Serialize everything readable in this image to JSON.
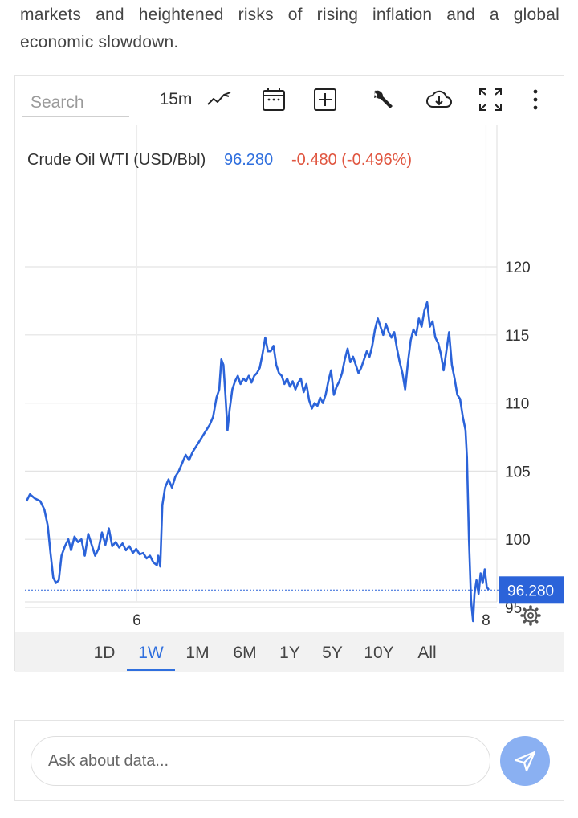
{
  "intro": {
    "line1": "markets and heightened risks of rising inflation and a global",
    "line2": "economic slowdown."
  },
  "toolbar": {
    "search_placeholder": "Search",
    "interval": "15m",
    "icons": [
      "line-chart-icon",
      "calendar-icon",
      "add-box-icon",
      "wrench-icon",
      "cloud-download-icon",
      "fullscreen-icon",
      "more-vert-icon"
    ]
  },
  "chart_data": {
    "type": "line",
    "title": "Crude Oil WTI (USD/Bbl)",
    "last_value": "96.280",
    "change": "-0.480 (-0.496%)",
    "price_tag": "96.280",
    "series_color": "#2b63d9",
    "up_color": "#2f6fde",
    "down_color": "#e0553f",
    "ylim": [
      90,
      121
    ],
    "y_ticks": [
      95,
      100,
      105,
      110,
      115,
      120
    ],
    "x_ticks": [
      {
        "label": "6",
        "x": 46
      },
      {
        "label": "8",
        "x": 96
      }
    ],
    "xlim": [
      0,
      100
    ],
    "grid": true,
    "reference_line": 96.28,
    "points": [
      [
        0,
        102.8
      ],
      [
        0.5,
        103.3
      ],
      [
        1.2,
        103.0
      ],
      [
        2,
        102.8
      ],
      [
        2.6,
        102.2
      ],
      [
        3.1,
        101.0
      ],
      [
        3.5,
        99.0
      ],
      [
        3.9,
        97.2
      ],
      [
        4.3,
        96.8
      ],
      [
        4.7,
        97.0
      ],
      [
        5.1,
        98.8
      ],
      [
        5.6,
        99.5
      ],
      [
        6.1,
        100.0
      ],
      [
        6.5,
        99.2
      ],
      [
        7,
        100.2
      ],
      [
        7.5,
        99.8
      ],
      [
        8,
        100.0
      ],
      [
        8.5,
        98.8
      ],
      [
        9,
        100.4
      ],
      [
        9.5,
        99.6
      ],
      [
        10,
        98.8
      ],
      [
        10.5,
        99.3
      ],
      [
        11,
        100.5
      ],
      [
        11.5,
        99.6
      ],
      [
        12,
        100.8
      ],
      [
        12.5,
        99.5
      ],
      [
        13,
        99.8
      ],
      [
        13.5,
        99.4
      ],
      [
        14,
        99.7
      ],
      [
        14.5,
        99.2
      ],
      [
        15,
        99.5
      ],
      [
        15.5,
        99.0
      ],
      [
        16,
        99.3
      ],
      [
        16.5,
        98.9
      ],
      [
        17,
        99.0
      ],
      [
        17.5,
        98.6
      ],
      [
        18,
        98.8
      ],
      [
        18.5,
        98.3
      ],
      [
        19,
        98.1
      ],
      [
        19.2,
        98.8
      ],
      [
        19.5,
        98.0
      ],
      [
        19.8,
        102.5
      ],
      [
        20.2,
        103.8
      ],
      [
        20.7,
        104.4
      ],
      [
        21.2,
        103.8
      ],
      [
        21.7,
        104.6
      ],
      [
        22.2,
        105.0
      ],
      [
        22.7,
        105.6
      ],
      [
        23.2,
        106.2
      ],
      [
        23.7,
        105.8
      ],
      [
        24.2,
        106.4
      ],
      [
        24.7,
        106.8
      ],
      [
        25.2,
        107.2
      ],
      [
        25.7,
        107.6
      ],
      [
        26.2,
        108.0
      ],
      [
        26.7,
        108.4
      ],
      [
        27.2,
        109.0
      ],
      [
        27.7,
        110.4
      ],
      [
        28.1,
        111.0
      ],
      [
        28.4,
        113.2
      ],
      [
        28.7,
        112.8
      ],
      [
        29.0,
        110.6
      ],
      [
        29.3,
        108.0
      ],
      [
        29.6,
        109.5
      ],
      [
        30.0,
        111.0
      ],
      [
        30.4,
        111.6
      ],
      [
        30.8,
        112.0
      ],
      [
        31.2,
        111.4
      ],
      [
        31.6,
        111.8
      ],
      [
        32.0,
        111.6
      ],
      [
        32.4,
        112.0
      ],
      [
        32.8,
        111.5
      ],
      [
        33.2,
        112.0
      ],
      [
        33.6,
        112.2
      ],
      [
        34.0,
        112.6
      ],
      [
        34.4,
        113.6
      ],
      [
        34.8,
        114.8
      ],
      [
        35.2,
        113.8
      ],
      [
        35.6,
        113.8
      ],
      [
        36.0,
        114.2
      ],
      [
        36.4,
        112.8
      ],
      [
        36.8,
        112.2
      ],
      [
        37.2,
        112.0
      ],
      [
        37.6,
        111.4
      ],
      [
        38.0,
        111.8
      ],
      [
        38.4,
        111.2
      ],
      [
        38.8,
        111.6
      ],
      [
        39.2,
        111.0
      ],
      [
        39.6,
        111.5
      ],
      [
        40.0,
        111.8
      ],
      [
        40.4,
        110.8
      ],
      [
        40.8,
        111.4
      ],
      [
        41.2,
        110.2
      ],
      [
        41.6,
        109.6
      ],
      [
        42.0,
        110.0
      ],
      [
        42.4,
        109.8
      ],
      [
        42.8,
        110.4
      ],
      [
        43.2,
        110.0
      ],
      [
        43.6,
        110.6
      ],
      [
        44.0,
        111.6
      ],
      [
        44.4,
        112.4
      ],
      [
        44.8,
        110.6
      ],
      [
        45.2,
        111.2
      ],
      [
        45.6,
        111.6
      ],
      [
        46.0,
        112.2
      ],
      [
        46.4,
        113.2
      ],
      [
        46.8,
        114.0
      ],
      [
        47.2,
        113.0
      ],
      [
        47.6,
        113.4
      ],
      [
        48.0,
        112.8
      ],
      [
        48.4,
        112.2
      ],
      [
        48.8,
        112.6
      ],
      [
        49.2,
        113.2
      ],
      [
        49.6,
        113.8
      ],
      [
        50.0,
        113.4
      ],
      [
        50.4,
        114.2
      ],
      [
        50.8,
        115.4
      ],
      [
        51.2,
        116.2
      ],
      [
        51.6,
        115.6
      ],
      [
        52.0,
        115.0
      ],
      [
        52.4,
        115.8
      ],
      [
        52.8,
        115.2
      ],
      [
        53.2,
        114.8
      ],
      [
        53.6,
        115.2
      ],
      [
        54.0,
        114.0
      ],
      [
        54.4,
        113.0
      ],
      [
        54.8,
        112.2
      ],
      [
        55.2,
        111.0
      ],
      [
        55.6,
        113.0
      ],
      [
        56.0,
        114.6
      ],
      [
        56.4,
        115.4
      ],
      [
        56.8,
        115.0
      ],
      [
        57.2,
        116.2
      ],
      [
        57.6,
        115.6
      ],
      [
        58.0,
        116.8
      ],
      [
        58.4,
        117.4
      ],
      [
        58.8,
        115.6
      ],
      [
        59.2,
        116.0
      ],
      [
        59.6,
        114.8
      ],
      [
        60.0,
        114.4
      ],
      [
        60.4,
        113.6
      ],
      [
        60.8,
        112.4
      ],
      [
        61.2,
        113.8
      ],
      [
        61.6,
        115.2
      ],
      [
        62.0,
        112.8
      ],
      [
        62.4,
        111.8
      ],
      [
        62.8,
        110.6
      ],
      [
        63.2,
        110.3
      ],
      [
        63.6,
        109.0
      ],
      [
        64.0,
        108.0
      ],
      [
        64.2,
        106.0
      ],
      [
        64.5,
        100.0
      ],
      [
        64.8,
        95.5
      ],
      [
        65.1,
        94.0
      ],
      [
        65.3,
        96.0
      ],
      [
        65.6,
        97.0
      ],
      [
        65.9,
        96.0
      ],
      [
        66.2,
        97.5
      ],
      [
        66.5,
        96.8
      ],
      [
        66.8,
        97.8
      ],
      [
        67.1,
        96.5
      ],
      [
        67.4,
        96.3
      ]
    ]
  },
  "ranges": [
    "1D",
    "1W",
    "1M",
    "6M",
    "1Y",
    "5Y",
    "10Y",
    "All"
  ],
  "active_range": "1W",
  "ask": {
    "placeholder": "Ask about data..."
  }
}
